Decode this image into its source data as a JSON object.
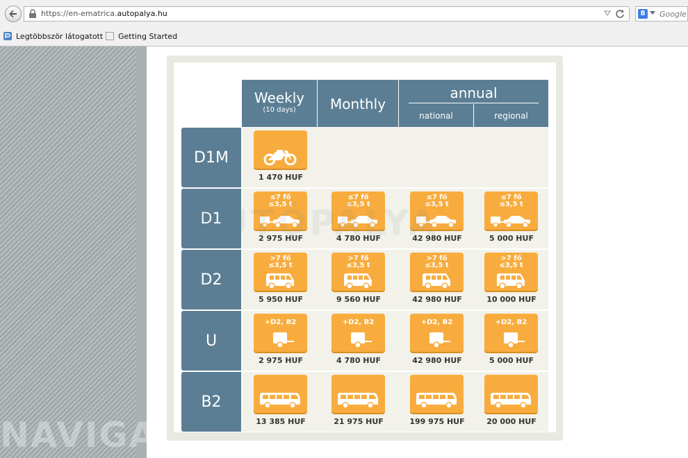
{
  "browser": {
    "url_prefix": "https://en-ematrica.",
    "url_domain": "autopalya.hu",
    "search_placeholder": "Google",
    "search_engine_letter": "8",
    "bookmarks": [
      {
        "label": "Legtöbbször látogatott",
        "icon": "bookmark-folder-icon"
      },
      {
        "label": "Getting Started",
        "icon": "page-icon"
      }
    ]
  },
  "watermarks": {
    "left": "NAVIGATOR.HU",
    "center": "AUTÓPÁLYA"
  },
  "table": {
    "headers": {
      "weekly": "Weekly",
      "weekly_sub": "(10 days)",
      "monthly": "Monthly",
      "annual": "annual",
      "national": "national",
      "regional": "regional"
    },
    "rows": [
      {
        "label": "D1M",
        "tile_text": [
          "",
          ""
        ],
        "icon": "motorcycle-icon",
        "prices": [
          "1 470 HUF"
        ]
      },
      {
        "label": "D1",
        "tile_text": [
          "≤7 fő",
          "≤3,5 t"
        ],
        "icon": "car-trailer-icon",
        "prices": [
          "2 975 HUF",
          "4 780 HUF",
          "42 980 HUF",
          "5 000 HUF"
        ]
      },
      {
        "label": "D2",
        "tile_text": [
          ">7 fő",
          "≤3,5 t"
        ],
        "icon": "van-icon",
        "prices": [
          "5 950 HUF",
          "9 560 HUF",
          "42 980 HUF",
          "10 000 HUF"
        ]
      },
      {
        "label": "U",
        "tile_text": [
          "+D2, B2",
          ""
        ],
        "icon": "trailer-icon",
        "prices": [
          "2 975 HUF",
          "4 780 HUF",
          "42 980 HUF",
          "5 000 HUF"
        ]
      },
      {
        "label": "B2",
        "tile_text": [
          "",
          ""
        ],
        "icon": "bus-icon",
        "prices": [
          "13 385 HUF",
          "21 975 HUF",
          "199 975 HUF",
          "20 000 HUF"
        ]
      }
    ]
  },
  "colors": {
    "header_bg": "#5b7e94",
    "tile_bg": "#f8ac3e",
    "row_bg": "#f2f2ea"
  }
}
